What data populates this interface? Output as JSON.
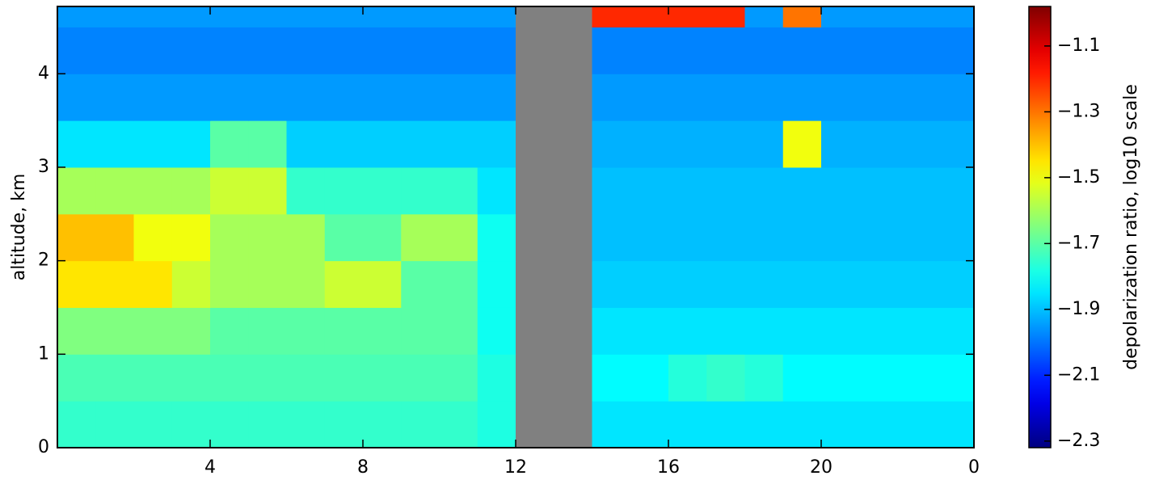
{
  "chart_data": {
    "type": "heatmap",
    "y_label": "altitude, km",
    "colorbar_label": "depolarization ratio, log10 scale",
    "colormap": "jet",
    "missing_color": "#808080",
    "x_edges": [
      0,
      1,
      2,
      3,
      4,
      5,
      6,
      7,
      8,
      9,
      10,
      11,
      12,
      13,
      14,
      15,
      16,
      17,
      18,
      19,
      20,
      21,
      22,
      23,
      24
    ],
    "y_edges": [
      0,
      0.5,
      1,
      1.5,
      2,
      2.5,
      3,
      3.5,
      4,
      4.5,
      4.72
    ],
    "values": [
      [
        -1.75,
        -1.75,
        -1.75,
        -1.75,
        -1.75,
        -1.75,
        -1.75,
        -1.75,
        -1.75,
        -1.75,
        -1.75,
        -1.78,
        null,
        null,
        -1.85,
        -1.85,
        -1.85,
        -1.85,
        -1.85,
        -1.85,
        -1.85,
        -1.85,
        -1.85,
        -1.85
      ],
      [
        -1.72,
        -1.72,
        -1.72,
        -1.72,
        -1.72,
        -1.72,
        -1.72,
        -1.72,
        -1.72,
        -1.72,
        -1.72,
        -1.78,
        null,
        null,
        -1.82,
        -1.82,
        -1.77,
        -1.75,
        -1.77,
        -1.82,
        -1.82,
        -1.82,
        -1.82,
        -1.82
      ],
      [
        -1.65,
        -1.65,
        -1.65,
        -1.65,
        -1.7,
        -1.7,
        -1.7,
        -1.7,
        -1.7,
        -1.7,
        -1.7,
        -1.8,
        null,
        null,
        -1.85,
        -1.85,
        -1.85,
        -1.85,
        -1.85,
        -1.85,
        -1.85,
        -1.85,
        -1.85,
        -1.85
      ],
      [
        -1.45,
        -1.45,
        -1.45,
        -1.55,
        -1.6,
        -1.6,
        -1.6,
        -1.55,
        -1.55,
        -1.7,
        -1.7,
        -1.8,
        null,
        null,
        -1.88,
        -1.88,
        -1.88,
        -1.88,
        -1.88,
        -1.88,
        -1.88,
        -1.88,
        -1.88,
        -1.88
      ],
      [
        -1.4,
        -1.4,
        -1.5,
        -1.5,
        -1.6,
        -1.6,
        -1.6,
        -1.7,
        -1.7,
        -1.6,
        -1.6,
        -1.8,
        null,
        null,
        -1.9,
        -1.9,
        -1.9,
        -1.9,
        -1.9,
        -1.9,
        -1.9,
        -1.9,
        -1.9,
        -1.9
      ],
      [
        -1.6,
        -1.6,
        -1.6,
        -1.6,
        -1.55,
        -1.55,
        -1.75,
        -1.75,
        -1.75,
        -1.75,
        -1.75,
        -1.85,
        null,
        null,
        -1.9,
        -1.9,
        -1.9,
        -1.9,
        -1.9,
        -1.9,
        -1.9,
        -1.9,
        -1.9,
        -1.9
      ],
      [
        -1.85,
        -1.85,
        -1.85,
        -1.85,
        -1.7,
        -1.7,
        -1.88,
        -1.88,
        -1.88,
        -1.88,
        -1.88,
        -1.88,
        null,
        null,
        -1.92,
        -1.92,
        -1.92,
        -1.92,
        -1.92,
        -1.5,
        -1.92,
        -1.92,
        -1.92,
        -1.92
      ],
      [
        -1.95,
        -1.95,
        -1.95,
        -1.95,
        -1.95,
        -1.95,
        -1.95,
        -1.95,
        -1.95,
        -1.95,
        -1.95,
        -1.95,
        null,
        null,
        -1.95,
        -1.95,
        -1.95,
        -1.95,
        -1.95,
        -1.95,
        -1.95,
        -1.95,
        -1.95,
        -1.95
      ],
      [
        -1.98,
        -1.98,
        -1.98,
        -1.98,
        -1.98,
        -1.98,
        -1.98,
        -1.98,
        -1.98,
        -1.98,
        -1.98,
        -1.98,
        null,
        null,
        -1.98,
        -1.98,
        -1.98,
        -1.98,
        -1.98,
        -1.98,
        -1.98,
        -1.98,
        -1.98,
        -1.98
      ],
      [
        -1.95,
        -1.95,
        -1.95,
        -1.95,
        -1.95,
        -1.95,
        -1.95,
        -1.95,
        -1.95,
        -1.95,
        -1.95,
        -1.95,
        null,
        null,
        -1.2,
        -1.2,
        -1.2,
        -1.2,
        -1.95,
        -1.3,
        -1.95,
        -1.95,
        -1.95,
        -1.95
      ]
    ],
    "xlim": [
      0,
      24
    ],
    "xticks": [
      4,
      8,
      12,
      16,
      20,
      {
        "value": 24,
        "label": "0"
      }
    ],
    "ylim": [
      0,
      4.72
    ],
    "yticks": [
      0,
      1,
      2,
      3,
      4
    ],
    "clim": [
      -2.32,
      -0.98
    ],
    "cticks": [
      {
        "value": -1.1,
        "label": "−1.1"
      },
      {
        "value": -1.3,
        "label": "−1.3"
      },
      {
        "value": -1.5,
        "label": "−1.5"
      },
      {
        "value": -1.7,
        "label": "−1.7"
      },
      {
        "value": -1.9,
        "label": "−1.9"
      },
      {
        "value": -2.1,
        "label": "−2.1"
      },
      {
        "value": -2.3,
        "label": "−2.3"
      }
    ]
  }
}
